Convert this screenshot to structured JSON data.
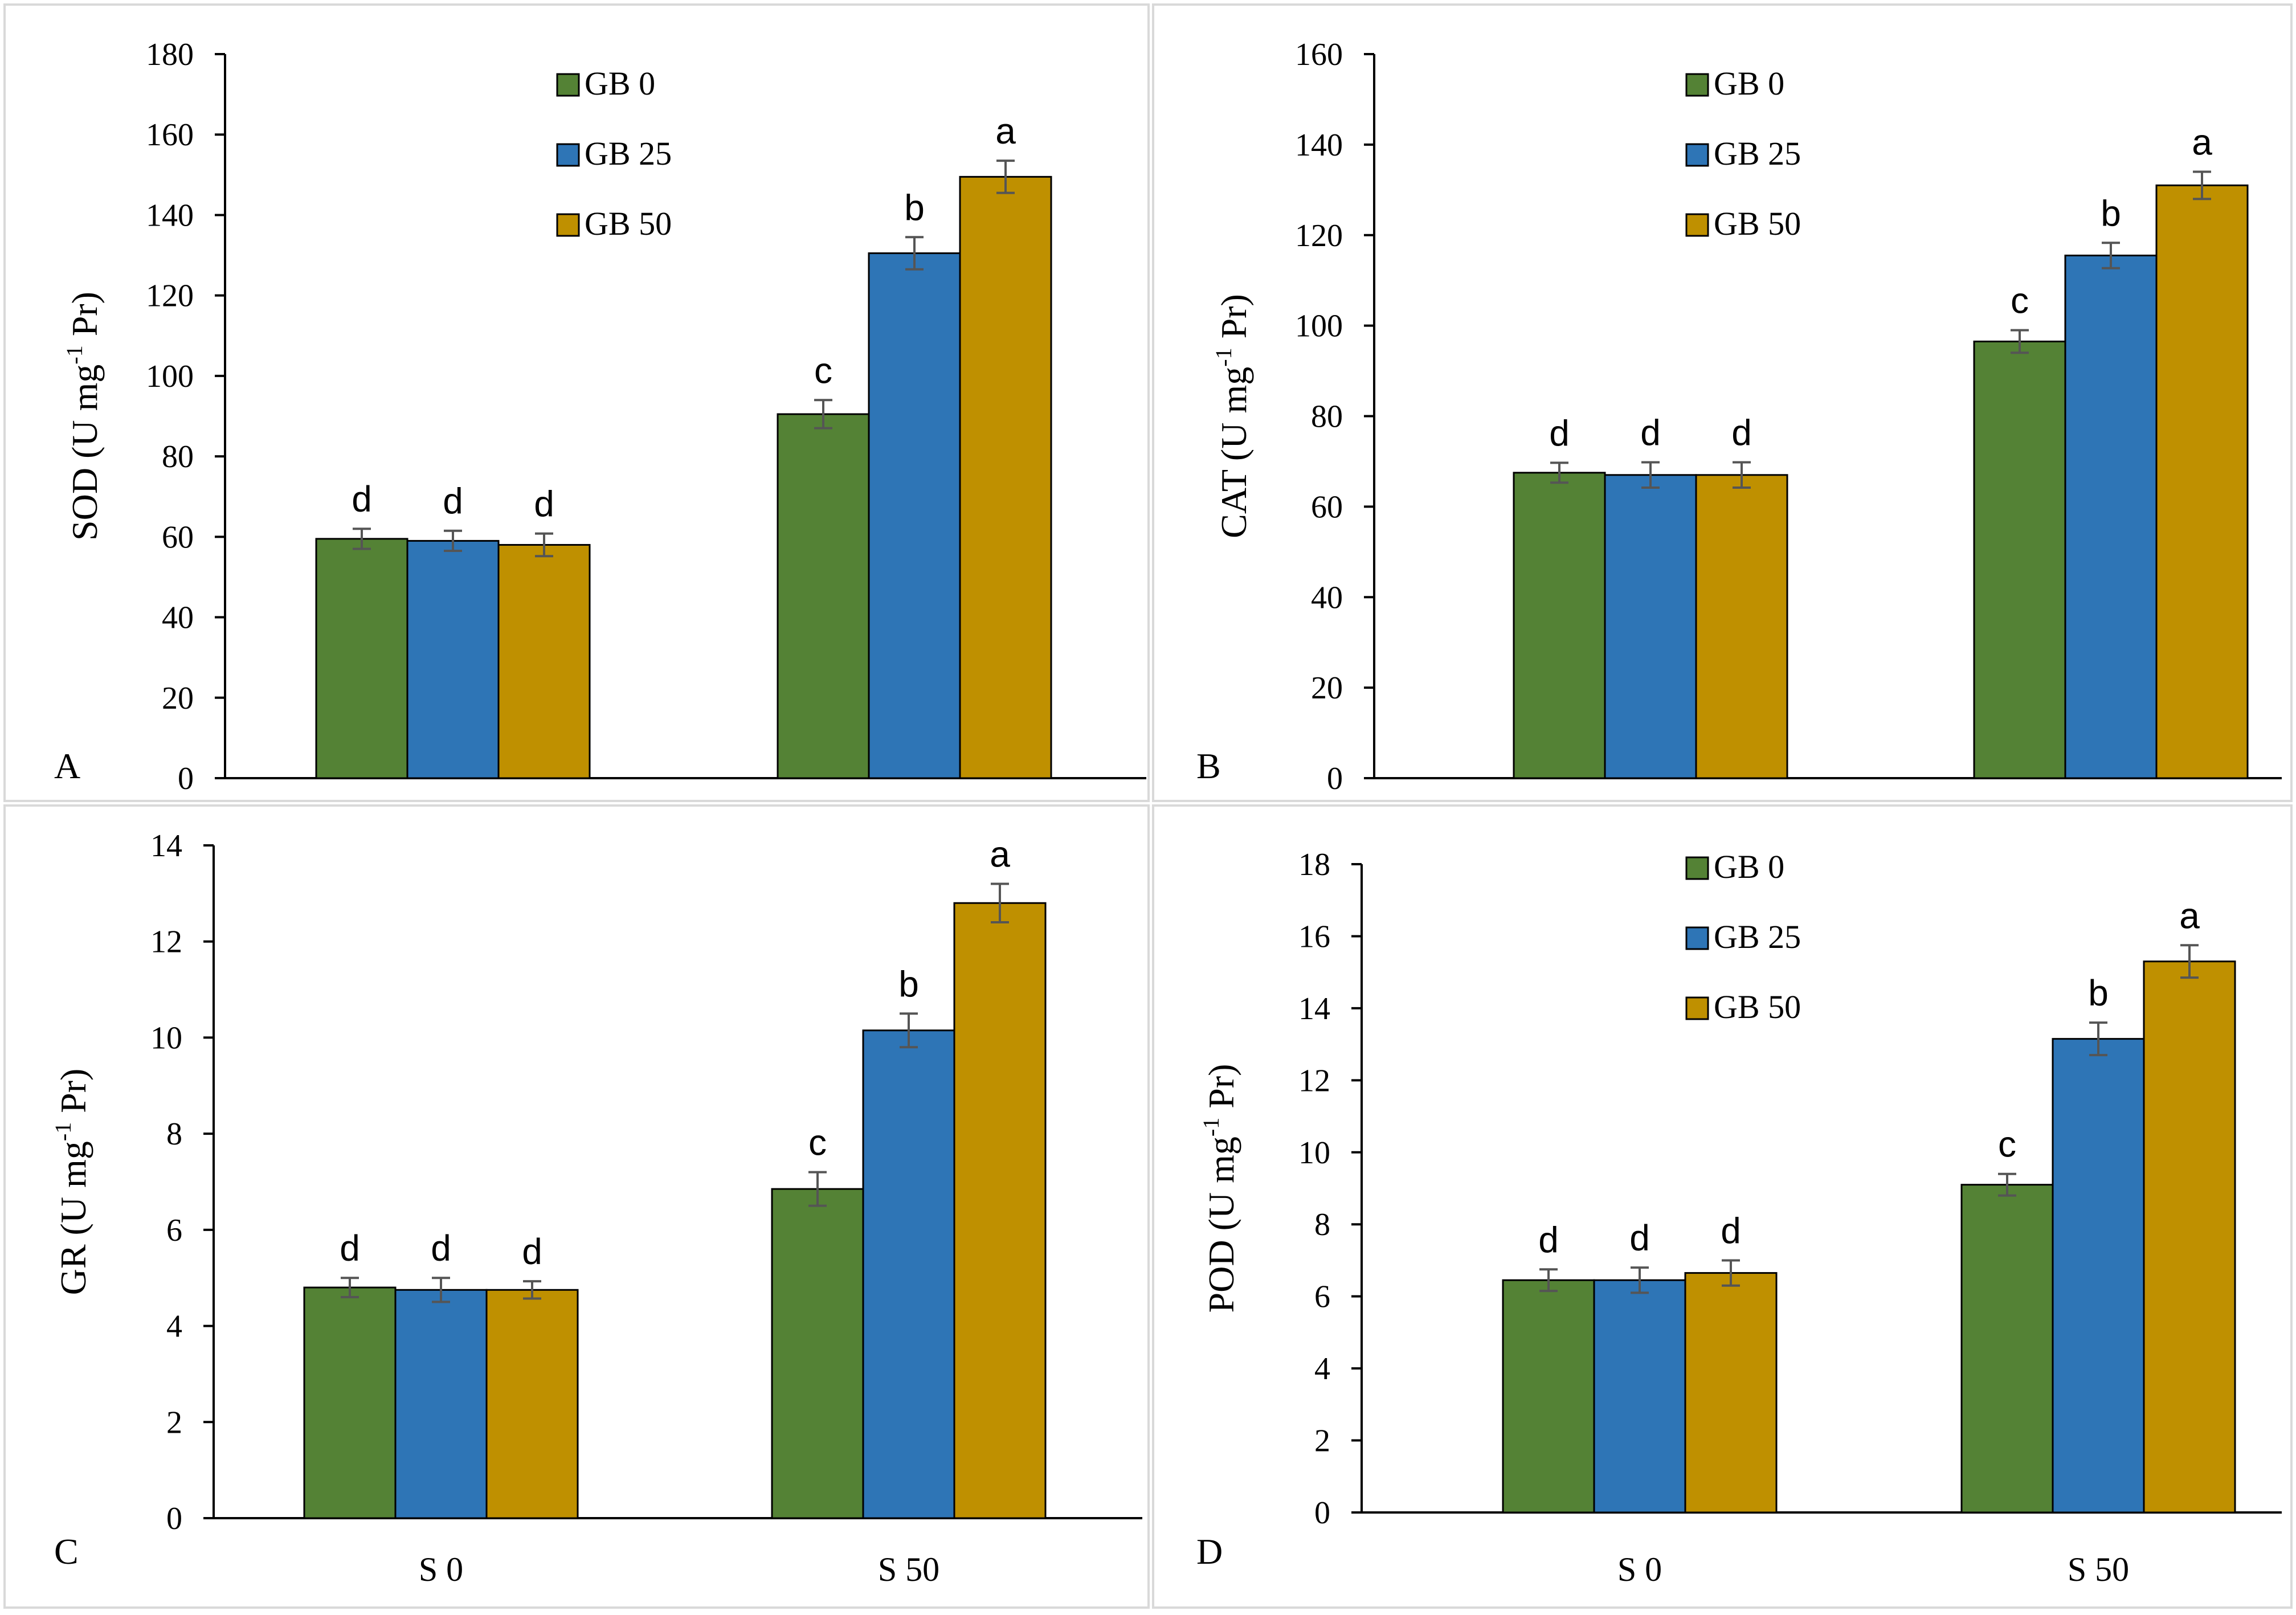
{
  "chart_data": [
    {
      "type": "bar",
      "panel_label": "A",
      "ylabel": "SOD (U mg",
      "ylabel_sup": "-1",
      "ylabel_tail": " Pr)",
      "ylim": [
        0,
        180
      ],
      "yticks": [
        0,
        20,
        40,
        60,
        80,
        100,
        120,
        140,
        160,
        180
      ],
      "categories": [
        "S 0",
        "S 50"
      ],
      "show_xlabels": false,
      "show_legend": true,
      "series": [
        {
          "name": "GB 0",
          "values": [
            59.5,
            90.5
          ],
          "errors": [
            2.5,
            3.5
          ],
          "letters": [
            "d",
            "c"
          ]
        },
        {
          "name": "GB 25",
          "values": [
            59.0,
            130.5
          ],
          "errors": [
            2.5,
            4.0
          ],
          "letters": [
            "d",
            "b"
          ]
        },
        {
          "name": "GB 50",
          "values": [
            58.0,
            149.5
          ],
          "errors": [
            2.8,
            4.0
          ],
          "letters": [
            "d",
            "a"
          ]
        }
      ]
    },
    {
      "type": "bar",
      "panel_label": "B",
      "ylabel": "CAT (U mg",
      "ylabel_sup": "-1",
      "ylabel_tail": " Pr)",
      "ylim": [
        0,
        160
      ],
      "yticks": [
        0,
        20,
        40,
        60,
        80,
        100,
        120,
        140,
        160
      ],
      "categories": [
        "S 0",
        "S 50"
      ],
      "show_xlabels": false,
      "show_legend": true,
      "series": [
        {
          "name": "GB 0",
          "values": [
            67.5,
            96.5
          ],
          "errors": [
            2.2,
            2.5
          ],
          "letters": [
            "d",
            "c"
          ]
        },
        {
          "name": "GB 25",
          "values": [
            67.0,
            115.5
          ],
          "errors": [
            2.8,
            2.8
          ],
          "letters": [
            "d",
            "b"
          ]
        },
        {
          "name": "GB 50",
          "values": [
            67.0,
            131.0
          ],
          "errors": [
            2.8,
            3.0
          ],
          "letters": [
            "d",
            "a"
          ]
        }
      ]
    },
    {
      "type": "bar",
      "panel_label": "C",
      "ylabel": "GR (U mg",
      "ylabel_sup": "-1",
      "ylabel_tail": " Pr)",
      "ylim": [
        0,
        14
      ],
      "yticks": [
        0,
        2,
        4,
        6,
        8,
        10,
        12,
        14
      ],
      "categories": [
        "S 0",
        "S 50"
      ],
      "show_xlabels": true,
      "show_legend": false,
      "series": [
        {
          "name": "GB 0",
          "values": [
            4.8,
            6.85
          ],
          "errors": [
            0.2,
            0.35
          ],
          "letters": [
            "d",
            "c"
          ]
        },
        {
          "name": "GB 25",
          "values": [
            4.75,
            10.15
          ],
          "errors": [
            0.25,
            0.35
          ],
          "letters": [
            "d",
            "b"
          ]
        },
        {
          "name": "GB 50",
          "values": [
            4.75,
            12.8
          ],
          "errors": [
            0.18,
            0.4
          ],
          "letters": [
            "d",
            "a"
          ]
        }
      ]
    },
    {
      "type": "bar",
      "panel_label": "D",
      "ylabel": "POD (U mg",
      "ylabel_sup": "-1",
      "ylabel_tail": " Pr)",
      "ylim": [
        0,
        18
      ],
      "yticks": [
        0,
        2,
        4,
        6,
        8,
        10,
        12,
        14,
        16,
        18
      ],
      "categories": [
        "S 0",
        "S 50"
      ],
      "show_xlabels": true,
      "show_legend": true,
      "series": [
        {
          "name": "GB 0",
          "values": [
            6.45,
            9.1
          ],
          "errors": [
            0.3,
            0.3
          ],
          "letters": [
            "d",
            "c"
          ]
        },
        {
          "name": "GB 25",
          "values": [
            6.45,
            13.15
          ],
          "errors": [
            0.35,
            0.45
          ],
          "letters": [
            "d",
            "b"
          ]
        },
        {
          "name": "GB 50",
          "values": [
            6.65,
            15.3
          ],
          "errors": [
            0.35,
            0.45
          ],
          "letters": [
            "d",
            "a"
          ]
        }
      ]
    }
  ],
  "colors": {
    "GB 0": "#548235",
    "GB 25": "#2E75B6",
    "GB 50": "#BF9000",
    "panel_border": "#d9d9d9",
    "error_bar": "#555555"
  }
}
